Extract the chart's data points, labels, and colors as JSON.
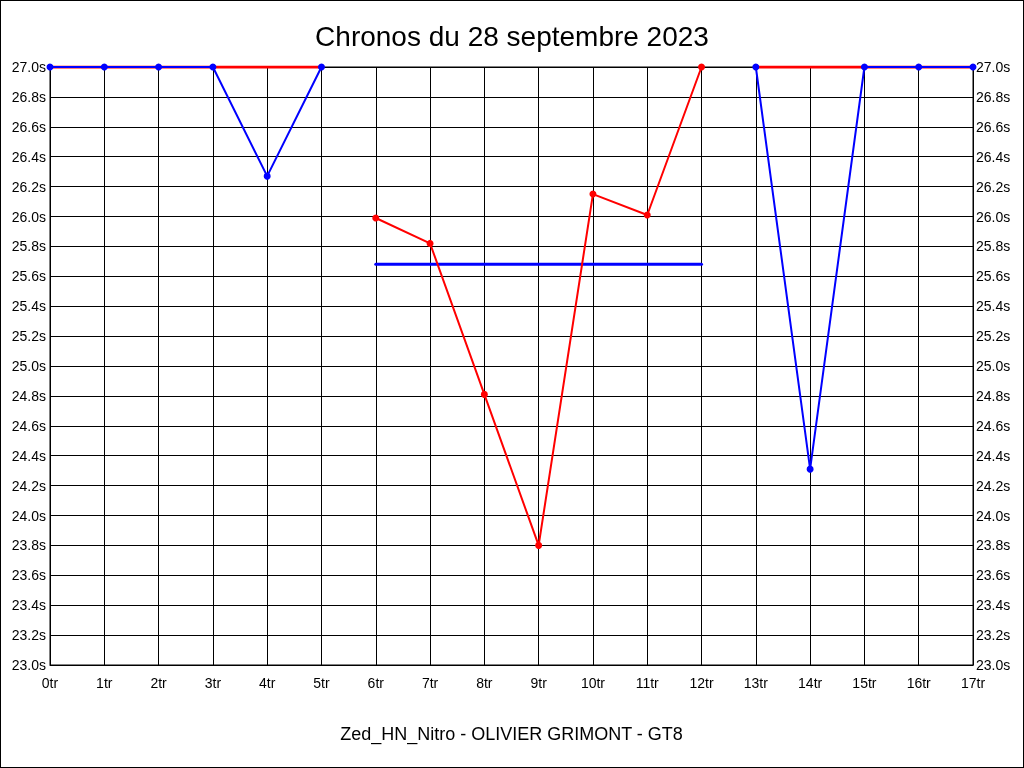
{
  "chart_data": {
    "type": "line",
    "title": "Chronos du 28 septembre 2023",
    "xlabel": "Zed_HN_Nitro - OLIVIER GRIMONT - GT8",
    "xlim": [
      0,
      17
    ],
    "xticks": [
      {
        "value": 0,
        "label": "0tr"
      },
      {
        "value": 1,
        "label": "1tr"
      },
      {
        "value": 2,
        "label": "2tr"
      },
      {
        "value": 3,
        "label": "3tr"
      },
      {
        "value": 4,
        "label": "4tr"
      },
      {
        "value": 5,
        "label": "5tr"
      },
      {
        "value": 6,
        "label": "6tr"
      },
      {
        "value": 7,
        "label": "7tr"
      },
      {
        "value": 8,
        "label": "8tr"
      },
      {
        "value": 9,
        "label": "9tr"
      },
      {
        "value": 10,
        "label": "10tr"
      },
      {
        "value": 11,
        "label": "11tr"
      },
      {
        "value": 12,
        "label": "12tr"
      },
      {
        "value": 13,
        "label": "13tr"
      },
      {
        "value": 14,
        "label": "14tr"
      },
      {
        "value": 15,
        "label": "15tr"
      },
      {
        "value": 16,
        "label": "16tr"
      },
      {
        "value": 17,
        "label": "17tr"
      }
    ],
    "ylim": [
      23,
      27
    ],
    "yticks": [
      {
        "value": 23.0,
        "label": "23.0s"
      },
      {
        "value": 23.2,
        "label": "23.2s"
      },
      {
        "value": 23.4,
        "label": "23.4s"
      },
      {
        "value": 23.6,
        "label": "23.6s"
      },
      {
        "value": 23.8,
        "label": "23.8s"
      },
      {
        "value": 24.0,
        "label": "24.0s"
      },
      {
        "value": 24.2,
        "label": "24.2s"
      },
      {
        "value": 24.4,
        "label": "24.4s"
      },
      {
        "value": 24.6,
        "label": "24.6s"
      },
      {
        "value": 24.8,
        "label": "24.8s"
      },
      {
        "value": 25.0,
        "label": "25.0s"
      },
      {
        "value": 25.2,
        "label": "25.2s"
      },
      {
        "value": 25.4,
        "label": "25.4s"
      },
      {
        "value": 25.6,
        "label": "25.6s"
      },
      {
        "value": 25.8,
        "label": "25.8s"
      },
      {
        "value": 26.0,
        "label": "26.0s"
      },
      {
        "value": 26.2,
        "label": "26.2s"
      },
      {
        "value": 26.4,
        "label": "26.4s"
      },
      {
        "value": 26.6,
        "label": "26.6s"
      },
      {
        "value": 26.8,
        "label": "26.8s"
      },
      {
        "value": 27.0,
        "label": "27.0s"
      }
    ],
    "y2lim": [
      23,
      27
    ],
    "y2ticks": [
      {
        "value": 23.0,
        "label": "23.0s"
      },
      {
        "value": 23.2,
        "label": "23.2s"
      },
      {
        "value": 23.4,
        "label": "23.4s"
      },
      {
        "value": 23.6,
        "label": "23.6s"
      },
      {
        "value": 23.8,
        "label": "23.8s"
      },
      {
        "value": 24.0,
        "label": "24.0s"
      },
      {
        "value": 24.2,
        "label": "24.2s"
      },
      {
        "value": 24.4,
        "label": "24.4s"
      },
      {
        "value": 24.6,
        "label": "24.6s"
      },
      {
        "value": 24.8,
        "label": "24.8s"
      },
      {
        "value": 25.0,
        "label": "25.0s"
      },
      {
        "value": 25.2,
        "label": "25.2s"
      },
      {
        "value": 25.4,
        "label": "25.4s"
      },
      {
        "value": 25.6,
        "label": "25.6s"
      },
      {
        "value": 25.8,
        "label": "25.8s"
      },
      {
        "value": 26.0,
        "label": "26.0s"
      },
      {
        "value": 26.2,
        "label": "26.2s"
      },
      {
        "value": 26.4,
        "label": "26.4s"
      },
      {
        "value": 26.6,
        "label": "26.6s"
      },
      {
        "value": 26.8,
        "label": "26.8s"
      },
      {
        "value": 27.0,
        "label": "27.0s"
      }
    ],
    "grid": true,
    "marker": "circle",
    "line_style": "solid",
    "series": [
      {
        "color": "#ff0000",
        "x": [
          0,
          5
        ],
        "values": [
          27,
          27
        ],
        "marker": "none"
      },
      {
        "color": "#0000ff",
        "x": [
          0,
          1,
          2,
          3,
          4,
          5
        ],
        "values": [
          27,
          27,
          27,
          27,
          26.27,
          27
        ]
      },
      {
        "color": "#0000ff",
        "x": [
          6,
          12
        ],
        "values": [
          25.68,
          25.68
        ],
        "marker": "none"
      },
      {
        "color": "#ff0000",
        "x": [
          6,
          7,
          8,
          9,
          10,
          11,
          12
        ],
        "values": [
          25.99,
          25.82,
          24.81,
          23.8,
          26.15,
          26.01,
          27
        ]
      },
      {
        "color": "#ff0000",
        "x": [
          13,
          17
        ],
        "values": [
          27,
          27
        ],
        "marker": "none"
      },
      {
        "color": "#0000ff",
        "x": [
          13,
          14,
          15,
          16,
          17
        ],
        "values": [
          27,
          24.31,
          27,
          27,
          27
        ]
      }
    ]
  }
}
